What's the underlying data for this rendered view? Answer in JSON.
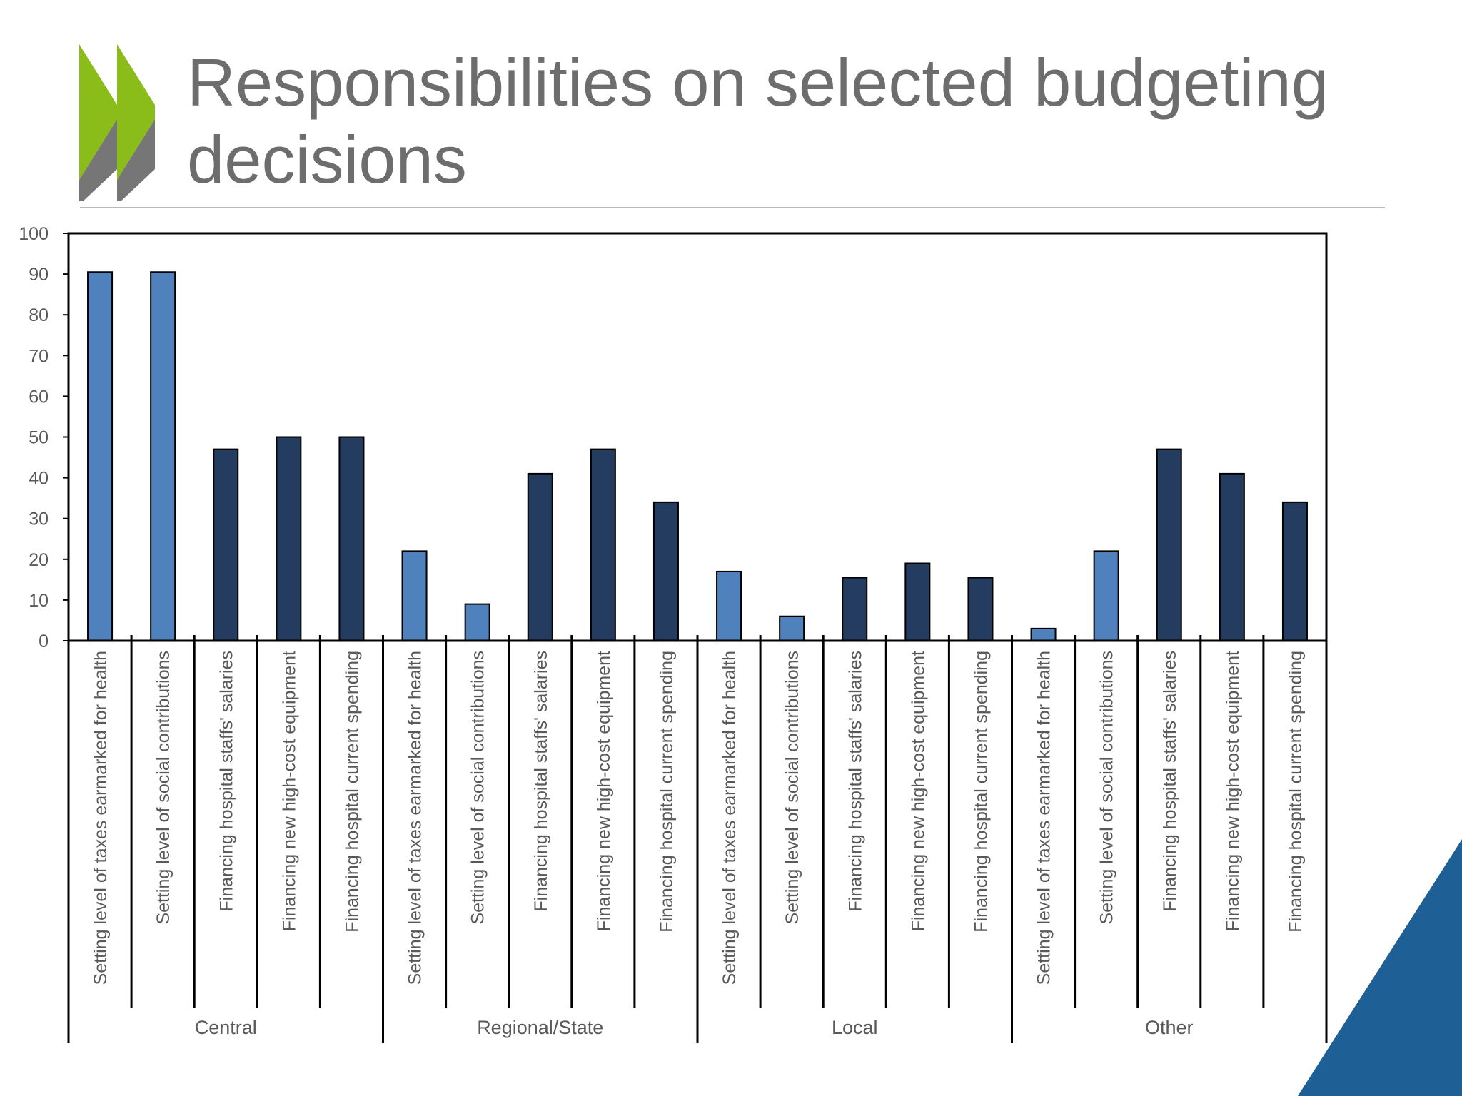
{
  "slide": {
    "title": "Responsibilities on selected budgeting decisions"
  },
  "colors": {
    "title_text": "#6d6d6d",
    "light_bar": "#4f81bd",
    "dark_bar": "#243c5f",
    "logo_green": "#8bbd1a",
    "logo_gray": "#767676",
    "corner_blue": "#1e5f96"
  },
  "icons": {
    "logo": "oecd-chevron-logo",
    "corner": "blue-corner-triangle"
  },
  "chart_data": {
    "type": "bar",
    "title": "",
    "xlabel": "",
    "ylabel": "",
    "ylim": [
      0,
      100
    ],
    "yticks": [
      0,
      10,
      20,
      30,
      40,
      50,
      60,
      70,
      80,
      90,
      100
    ],
    "grid": false,
    "legend": "none",
    "groups": [
      {
        "name": "Central",
        "items": [
          {
            "label": "Setting level of taxes earmarked for health",
            "value": 90.5,
            "kind": "light"
          },
          {
            "label": "Setting level of social contributions",
            "value": 90.5,
            "kind": "light"
          },
          {
            "label": "Financing hospital staffs' salaries",
            "value": 47,
            "kind": "dark"
          },
          {
            "label": "Financing new high-cost equipment",
            "value": 50,
            "kind": "dark"
          },
          {
            "label": "Financing hospital current spending",
            "value": 50,
            "kind": "dark"
          }
        ]
      },
      {
        "name": "Regional/State",
        "items": [
          {
            "label": "Setting level of taxes earmarked for health",
            "value": 22,
            "kind": "light"
          },
          {
            "label": "Setting level of social contributions",
            "value": 9,
            "kind": "light"
          },
          {
            "label": "Financing hospital staffs' salaries",
            "value": 41,
            "kind": "dark"
          },
          {
            "label": "Financing new high-cost equipment",
            "value": 47,
            "kind": "dark"
          },
          {
            "label": "Financing hospital current spending",
            "value": 34,
            "kind": "dark"
          }
        ]
      },
      {
        "name": "Local",
        "items": [
          {
            "label": "Setting level of taxes earmarked for health",
            "value": 17,
            "kind": "light"
          },
          {
            "label": "Setting level of social contributions",
            "value": 6,
            "kind": "light"
          },
          {
            "label": "Financing hospital staffs' salaries",
            "value": 15.5,
            "kind": "dark"
          },
          {
            "label": "Financing new high-cost equipment",
            "value": 19,
            "kind": "dark"
          },
          {
            "label": "Financing hospital current spending",
            "value": 15.5,
            "kind": "dark"
          }
        ]
      },
      {
        "name": "Other",
        "items": [
          {
            "label": "Setting level of taxes earmarked for health",
            "value": 3,
            "kind": "light"
          },
          {
            "label": "Setting level of social contributions",
            "value": 22,
            "kind": "light"
          },
          {
            "label": "Financing hospital staffs' salaries",
            "value": 47,
            "kind": "dark"
          },
          {
            "label": "Financing new high-cost equipment",
            "value": 41,
            "kind": "dark"
          },
          {
            "label": "Financing hospital current spending",
            "value": 34,
            "kind": "dark"
          }
        ]
      }
    ]
  }
}
